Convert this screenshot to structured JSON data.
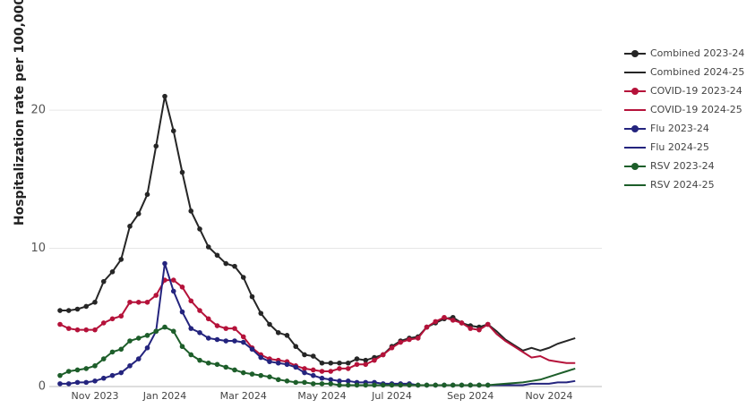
{
  "chart_data": {
    "type": "line",
    "y_label": "Hospitalization rate per 100,000",
    "categories": [
      null,
      null,
      null,
      null,
      "Nov 2023",
      null,
      null,
      null,
      null,
      null,
      null,
      null,
      "Jan 2024",
      null,
      null,
      null,
      null,
      null,
      null,
      null,
      null,
      "Mar 2024",
      null,
      null,
      null,
      null,
      null,
      null,
      null,
      null,
      "May 2024",
      null,
      null,
      null,
      null,
      null,
      null,
      null,
      "Jul 2024",
      null,
      null,
      null,
      null,
      null,
      null,
      null,
      null,
      "Sep 2024",
      null,
      null,
      null,
      null,
      null,
      null,
      null,
      null,
      "Nov 2024",
      null,
      null,
      null
    ],
    "ylim": [
      0,
      27
    ],
    "yticks": [
      0,
      10,
      20
    ],
    "grid": true,
    "series": [
      {
        "name": "Combined 2023-24",
        "color": "#262626",
        "markers": true,
        "values": [
          5.5,
          5.5,
          5.6,
          5.8,
          6.1,
          7.6,
          8.3,
          9.2,
          11.6,
          12.5,
          13.9,
          17.4,
          21.0,
          18.5,
          15.5,
          12.7,
          11.4,
          10.1,
          9.5,
          8.9,
          8.7,
          7.9,
          6.5,
          5.3,
          4.5,
          3.9,
          3.7,
          2.9,
          2.3,
          2.2,
          1.7,
          1.7,
          1.7,
          1.7,
          2.0,
          1.9,
          2.1,
          2.3,
          2.9,
          3.3,
          3.5,
          3.6,
          4.3,
          4.6,
          4.9,
          5.0,
          4.6,
          4.4,
          4.3,
          4.5,
          null,
          null,
          null,
          null,
          null,
          null,
          null,
          null,
          null,
          null
        ]
      },
      {
        "name": "Combined 2024-25",
        "color": "#262626",
        "markers": false,
        "values": [
          null,
          null,
          null,
          null,
          null,
          null,
          null,
          null,
          null,
          null,
          null,
          null,
          null,
          null,
          null,
          null,
          null,
          null,
          null,
          null,
          null,
          null,
          null,
          null,
          null,
          null,
          null,
          null,
          null,
          null,
          null,
          null,
          null,
          null,
          null,
          null,
          null,
          null,
          null,
          null,
          null,
          null,
          null,
          null,
          null,
          null,
          null,
          null,
          null,
          4.5,
          4.0,
          3.4,
          3.0,
          2.6,
          2.8,
          2.6,
          2.8,
          3.1,
          3.3,
          3.5
        ]
      },
      {
        "name": "COVID-19 2023-24",
        "color": "#b5123a",
        "markers": true,
        "values": [
          4.5,
          4.2,
          4.1,
          4.1,
          4.1,
          4.6,
          4.9,
          5.1,
          6.1,
          6.1,
          6.1,
          6.6,
          7.7,
          7.7,
          7.2,
          6.2,
          5.5,
          4.9,
          4.4,
          4.2,
          4.2,
          3.6,
          2.8,
          2.3,
          2.0,
          1.9,
          1.8,
          1.5,
          1.3,
          1.2,
          1.1,
          1.1,
          1.3,
          1.3,
          1.6,
          1.6,
          1.9,
          2.3,
          2.8,
          3.2,
          3.4,
          3.5,
          4.3,
          4.7,
          5.0,
          4.8,
          4.6,
          4.2,
          4.1,
          4.5,
          null,
          null,
          null,
          null,
          null,
          null,
          null,
          null,
          null,
          null
        ]
      },
      {
        "name": "COVID-19 2024-25",
        "color": "#b5123a",
        "markers": false,
        "values": [
          null,
          null,
          null,
          null,
          null,
          null,
          null,
          null,
          null,
          null,
          null,
          null,
          null,
          null,
          null,
          null,
          null,
          null,
          null,
          null,
          null,
          null,
          null,
          null,
          null,
          null,
          null,
          null,
          null,
          null,
          null,
          null,
          null,
          null,
          null,
          null,
          null,
          null,
          null,
          null,
          null,
          null,
          null,
          null,
          null,
          null,
          null,
          null,
          null,
          4.5,
          3.8,
          3.3,
          2.9,
          2.5,
          2.1,
          2.2,
          1.9,
          1.8,
          1.7,
          1.7
        ]
      },
      {
        "name": "Flu 2023-24",
        "color": "#24247e",
        "markers": true,
        "values": [
          0.2,
          0.2,
          0.3,
          0.3,
          0.4,
          0.6,
          0.8,
          1.0,
          1.5,
          2.0,
          2.8,
          4.0,
          8.9,
          6.9,
          5.4,
          4.2,
          3.9,
          3.5,
          3.4,
          3.3,
          3.3,
          3.2,
          2.7,
          2.1,
          1.8,
          1.7,
          1.6,
          1.4,
          1.0,
          0.8,
          0.6,
          0.5,
          0.4,
          0.4,
          0.3,
          0.3,
          0.3,
          0.2,
          0.2,
          0.2,
          0.2,
          0.1,
          0.1,
          0.1,
          0.1,
          0.1,
          0.1,
          0.1,
          0.1,
          0.1,
          null,
          null,
          null,
          null,
          null,
          null,
          null,
          null,
          null,
          null
        ]
      },
      {
        "name": "Flu 2024-25",
        "color": "#24247e",
        "markers": false,
        "values": [
          null,
          null,
          null,
          null,
          null,
          null,
          null,
          null,
          null,
          null,
          null,
          null,
          null,
          null,
          null,
          null,
          null,
          null,
          null,
          null,
          null,
          null,
          null,
          null,
          null,
          null,
          null,
          null,
          null,
          null,
          null,
          null,
          null,
          null,
          null,
          null,
          null,
          null,
          null,
          null,
          null,
          null,
          null,
          null,
          null,
          null,
          null,
          null,
          null,
          0.1,
          0.1,
          0.1,
          0.1,
          0.1,
          0.2,
          0.2,
          0.2,
          0.3,
          0.3,
          0.4
        ]
      },
      {
        "name": "RSV 2023-24",
        "color": "#1d5e2a",
        "markers": true,
        "values": [
          0.8,
          1.1,
          1.2,
          1.3,
          1.5,
          2.0,
          2.5,
          2.7,
          3.3,
          3.5,
          3.7,
          4.0,
          4.3,
          4.0,
          2.9,
          2.3,
          1.9,
          1.7,
          1.6,
          1.4,
          1.2,
          1.0,
          0.9,
          0.8,
          0.7,
          0.5,
          0.4,
          0.3,
          0.3,
          0.2,
          0.2,
          0.2,
          0.1,
          0.1,
          0.1,
          0.1,
          0.1,
          0.1,
          0.1,
          0.1,
          0.1,
          0.1,
          0.1,
          0.1,
          0.1,
          0.1,
          0.1,
          0.1,
          0.1,
          0.1,
          null,
          null,
          null,
          null,
          null,
          null,
          null,
          null,
          null,
          null
        ]
      },
      {
        "name": "RSV 2024-25",
        "color": "#1d5e2a",
        "markers": false,
        "values": [
          null,
          null,
          null,
          null,
          null,
          null,
          null,
          null,
          null,
          null,
          null,
          null,
          null,
          null,
          null,
          null,
          null,
          null,
          null,
          null,
          null,
          null,
          null,
          null,
          null,
          null,
          null,
          null,
          null,
          null,
          null,
          null,
          null,
          null,
          null,
          null,
          null,
          null,
          null,
          null,
          null,
          null,
          null,
          null,
          null,
          null,
          null,
          null,
          null,
          0.1,
          0.15,
          0.2,
          0.25,
          0.3,
          0.4,
          0.5,
          0.7,
          0.9,
          1.1,
          1.3
        ]
      }
    ]
  }
}
